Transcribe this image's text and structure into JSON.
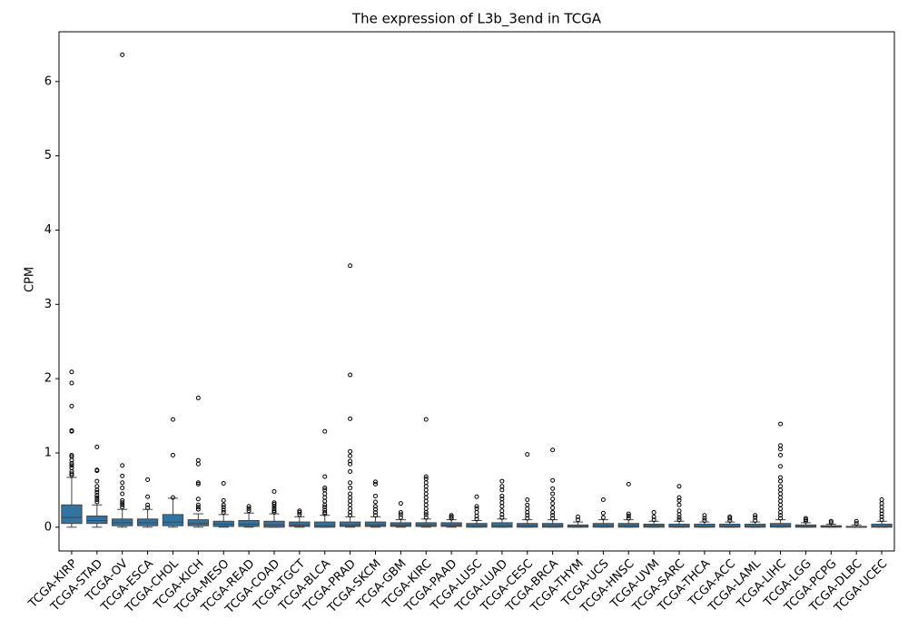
{
  "chart_data": {
    "type": "box",
    "title": "The expression of L3b_3end in TCGA",
    "ylabel": "CPM",
    "color": "#3274a1",
    "categories": [
      "TCGA-KIRP",
      "TCGA-STAD",
      "TCGA-OV",
      "TCGA-ESCA",
      "TCGA-CHOL",
      "TCGA-KICH",
      "TCGA-MESO",
      "TCGA-READ",
      "TCGA-COAD",
      "TCGA-TGCT",
      "TCGA-BLCA",
      "TCGA-PRAD",
      "TCGA-SKCM",
      "TCGA-GBM",
      "TCGA-KIRC",
      "TCGA-PAAD",
      "TCGA-LUSC",
      "TCGA-LUAD",
      "TCGA-CESC",
      "TCGA-BRCA",
      "TCGA-THYM",
      "TCGA-UCS",
      "TCGA-HNSC",
      "TCGA-UVM",
      "TCGA-SARC",
      "TCGA-THCA",
      "TCGA-ACC",
      "TCGA-LAML",
      "TCGA-LIHC",
      "TCGA-LGG",
      "TCGA-PCPG",
      "TCGA-DLBC",
      "TCGA-UCEC"
    ],
    "boxes": [
      {
        "min": 0,
        "q1": 0.05,
        "median": 0.13,
        "q3": 0.3,
        "max": 0.67,
        "outliers": [
          0.7,
          0.72,
          0.75,
          0.8,
          0.83,
          0.86,
          0.9,
          0.95,
          0.97,
          1.29,
          1.3,
          1.63,
          1.94,
          2.09
        ]
      },
      {
        "min": 0,
        "q1": 0.05,
        "median": 0.09,
        "q3": 0.15,
        "max": 0.3,
        "outliers": [
          0.34,
          0.37,
          0.4,
          0.43,
          0.47,
          0.5,
          0.55,
          0.62,
          0.76,
          0.77,
          1.08
        ]
      },
      {
        "min": 0,
        "q1": 0.02,
        "median": 0.06,
        "q3": 0.11,
        "max": 0.24,
        "outliers": [
          0.27,
          0.3,
          0.33,
          0.36,
          0.45,
          0.53,
          0.6,
          0.69,
          0.83,
          6.36
        ]
      },
      {
        "min": 0,
        "q1": 0.02,
        "median": 0.06,
        "q3": 0.11,
        "max": 0.24,
        "outliers": [
          0.26,
          0.3,
          0.41,
          0.64
        ]
      },
      {
        "min": 0,
        "q1": 0.02,
        "median": 0.07,
        "q3": 0.17,
        "max": 0.39,
        "outliers": [
          0.4,
          0.97,
          1.45
        ]
      },
      {
        "min": 0,
        "q1": 0.02,
        "median": 0.05,
        "q3": 0.1,
        "max": 0.18,
        "outliers": [
          0.24,
          0.27,
          0.3,
          0.38,
          0.58,
          0.6,
          0.85,
          0.9,
          1.74
        ]
      },
      {
        "min": 0,
        "q1": 0.01,
        "median": 0.04,
        "q3": 0.08,
        "max": 0.17,
        "outliers": [
          0.2,
          0.23,
          0.27,
          0.3,
          0.36,
          0.59
        ]
      },
      {
        "min": 0,
        "q1": 0.01,
        "median": 0.04,
        "q3": 0.09,
        "max": 0.19,
        "outliers": [
          0.22,
          0.25,
          0.28
        ]
      },
      {
        "min": 0,
        "q1": 0,
        "median": 0.03,
        "q3": 0.08,
        "max": 0.18,
        "outliers": [
          0.2,
          0.22,
          0.25,
          0.28,
          0.31,
          0.33,
          0.48
        ]
      },
      {
        "min": 0,
        "q1": 0.01,
        "median": 0.03,
        "q3": 0.07,
        "max": 0.14,
        "outliers": [
          0.17,
          0.2,
          0.22
        ]
      },
      {
        "min": 0,
        "q1": 0,
        "median": 0.02,
        "q3": 0.07,
        "max": 0.16,
        "outliers": [
          0.18,
          0.2,
          0.23,
          0.27,
          0.3,
          0.35,
          0.4,
          0.45,
          0.5,
          0.53,
          0.68,
          1.29
        ]
      },
      {
        "min": 0,
        "q1": 0.01,
        "median": 0.03,
        "q3": 0.07,
        "max": 0.14,
        "outliers": [
          0.16,
          0.2,
          0.25,
          0.3,
          0.35,
          0.4,
          0.45,
          0.53,
          0.6,
          0.75,
          0.85,
          0.89,
          0.96,
          1.02,
          1.46,
          2.05,
          3.52
        ]
      },
      {
        "min": 0,
        "q1": 0.01,
        "median": 0.03,
        "q3": 0.07,
        "max": 0.14,
        "outliers": [
          0.16,
          0.2,
          0.24,
          0.28,
          0.34,
          0.42,
          0.58,
          0.61
        ]
      },
      {
        "min": 0,
        "q1": 0.01,
        "median": 0.03,
        "q3": 0.06,
        "max": 0.1,
        "outliers": [
          0.13,
          0.17,
          0.2,
          0.32
        ]
      },
      {
        "min": 0,
        "q1": 0.01,
        "median": 0.03,
        "q3": 0.06,
        "max": 0.11,
        "outliers": [
          0.13,
          0.17,
          0.2,
          0.25,
          0.3,
          0.35,
          0.4,
          0.45,
          0.5,
          0.55,
          0.6,
          0.65,
          0.68,
          1.45
        ]
      },
      {
        "min": 0,
        "q1": 0.01,
        "median": 0.03,
        "q3": 0.06,
        "max": 0.1,
        "outliers": [
          0.12,
          0.14,
          0.16
        ]
      },
      {
        "min": 0,
        "q1": 0,
        "median": 0.02,
        "q3": 0.05,
        "max": 0.09,
        "outliers": [
          0.11,
          0.15,
          0.2,
          0.25,
          0.28,
          0.41
        ]
      },
      {
        "min": 0,
        "q1": 0,
        "median": 0.02,
        "q3": 0.06,
        "max": 0.11,
        "outliers": [
          0.13,
          0.17,
          0.22,
          0.28,
          0.33,
          0.38,
          0.42,
          0.5,
          0.55,
          0.62
        ]
      },
      {
        "min": 0,
        "q1": 0,
        "median": 0.02,
        "q3": 0.05,
        "max": 0.1,
        "outliers": [
          0.12,
          0.16,
          0.2,
          0.25,
          0.3,
          0.37,
          0.98
        ]
      },
      {
        "min": 0,
        "q1": 0,
        "median": 0.02,
        "q3": 0.05,
        "max": 0.1,
        "outliers": [
          0.12,
          0.16,
          0.2,
          0.26,
          0.32,
          0.38,
          0.45,
          0.52,
          0.63,
          1.04
        ]
      },
      {
        "min": 0,
        "q1": 0,
        "median": 0.01,
        "q3": 0.03,
        "max": 0.07,
        "outliers": [
          0.1,
          0.14
        ]
      },
      {
        "min": 0,
        "q1": 0,
        "median": 0.02,
        "q3": 0.05,
        "max": 0.1,
        "outliers": [
          0.13,
          0.19,
          0.37
        ]
      },
      {
        "min": 0,
        "q1": 0,
        "median": 0.02,
        "q3": 0.05,
        "max": 0.1,
        "outliers": [
          0.12,
          0.15,
          0.18,
          0.58
        ]
      },
      {
        "min": 0,
        "q1": 0,
        "median": 0.02,
        "q3": 0.04,
        "max": 0.08,
        "outliers": [
          0.1,
          0.14,
          0.2
        ]
      },
      {
        "min": 0,
        "q1": 0,
        "median": 0.01,
        "q3": 0.04,
        "max": 0.08,
        "outliers": [
          0.1,
          0.13,
          0.17,
          0.22,
          0.3,
          0.36,
          0.4,
          0.55
        ]
      },
      {
        "min": 0,
        "q1": 0,
        "median": 0.01,
        "q3": 0.04,
        "max": 0.07,
        "outliers": [
          0.09,
          0.12,
          0.16
        ]
      },
      {
        "min": 0,
        "q1": 0,
        "median": 0.01,
        "q3": 0.04,
        "max": 0.07,
        "outliers": [
          0.09,
          0.12,
          0.14
        ]
      },
      {
        "min": 0,
        "q1": 0,
        "median": 0.01,
        "q3": 0.04,
        "max": 0.07,
        "outliers": [
          0.09,
          0.13,
          0.16
        ]
      },
      {
        "min": 0,
        "q1": 0,
        "median": 0.02,
        "q3": 0.05,
        "max": 0.1,
        "outliers": [
          0.12,
          0.16,
          0.2,
          0.25,
          0.3,
          0.35,
          0.4,
          0.45,
          0.5,
          0.55,
          0.62,
          0.67,
          0.82,
          0.97,
          1.05,
          1.1,
          1.39
        ]
      },
      {
        "min": 0,
        "q1": 0,
        "median": 0.01,
        "q3": 0.03,
        "max": 0.06,
        "outliers": [
          0.08,
          0.1,
          0.12
        ]
      },
      {
        "min": 0,
        "q1": 0,
        "median": 0.01,
        "q3": 0.02,
        "max": 0.04,
        "outliers": [
          0.06,
          0.08
        ]
      },
      {
        "min": 0,
        "q1": 0,
        "median": 0,
        "q3": 0.01,
        "max": 0.03,
        "outliers": [
          0.05,
          0.08
        ]
      },
      {
        "min": 0,
        "q1": 0,
        "median": 0.01,
        "q3": 0.04,
        "max": 0.08,
        "outliers": [
          0.1,
          0.14,
          0.18,
          0.22,
          0.27,
          0.32,
          0.37
        ]
      }
    ],
    "ylim": [
      -0.32,
      6.67
    ],
    "yticks": [
      0,
      1,
      2,
      3,
      4,
      5,
      6
    ]
  }
}
